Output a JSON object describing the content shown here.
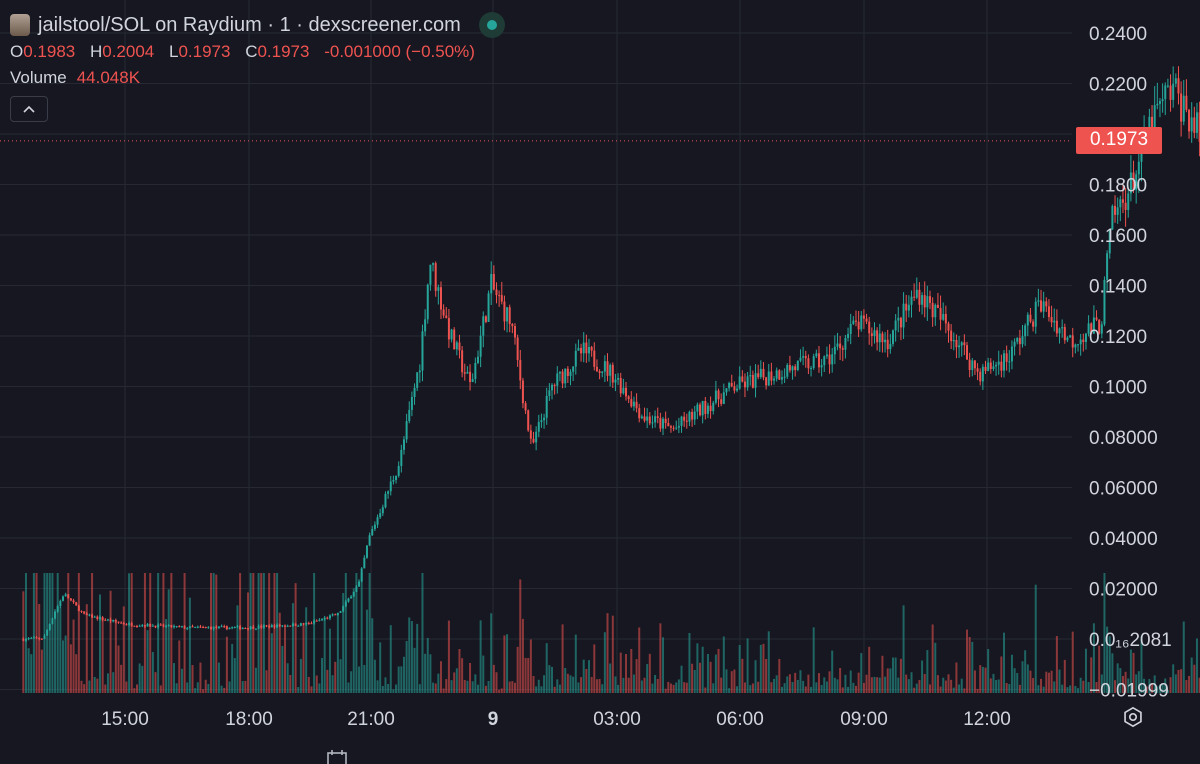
{
  "header": {
    "title": "jailstool/SOL on Raydium · 1 · dexscreener.com",
    "open_label": "O",
    "open": "0.1983",
    "high_label": "H",
    "high": "0.2004",
    "low_label": "L",
    "low": "0.1973",
    "close_label": "C",
    "close": "0.1973",
    "change": "-0.001000 (−0.50%)",
    "volume_label": "Volume",
    "volume": "44.048K",
    "collapse_icon": "chevron-up-icon",
    "status_icon": "status-dot-icon"
  },
  "current_price": "0.1973",
  "colors": {
    "up": "#26a69a",
    "down": "#ef5350",
    "background": "#161720",
    "grid": "#262833",
    "axis_text": "#d1d4dc"
  },
  "bottom_bar": {
    "calendar_icon": "calendar-icon",
    "settings_icon": "gear-icon"
  },
  "chart_data": {
    "type": "candlestick",
    "y_tick_labels": [
      "0.2400",
      "0.2200",
      "0.2000",
      "0.1800",
      "0.1600",
      "0.1400",
      "0.1200",
      "0.1000",
      "0.08000",
      "0.06000",
      "0.04000",
      "0.02000",
      "0.0₁₆2081",
      "−0.01999"
    ],
    "ylim": [
      -0.01999,
      0.24
    ],
    "x_tick_labels": [
      "15:00",
      "18:00",
      "21:00",
      "9",
      "03:00",
      "06:00",
      "09:00",
      "12:00"
    ],
    "grid": true,
    "close_series": [
      {
        "t": "13:20",
        "c": 0.0
      },
      {
        "t": "13:40",
        "c": 0.0003
      },
      {
        "t": "13:50",
        "c": 0.01
      },
      {
        "t": "14:00",
        "c": 0.018
      },
      {
        "t": "14:20",
        "c": 0.0095
      },
      {
        "t": "15:00",
        "c": 0.006
      },
      {
        "t": "16:00",
        "c": 0.0045
      },
      {
        "t": "17:00",
        "c": 0.0045
      },
      {
        "t": "18:00",
        "c": 0.006
      },
      {
        "t": "18:30",
        "c": 0.01
      },
      {
        "t": "18:50",
        "c": 0.022
      },
      {
        "t": "19:00",
        "c": 0.04
      },
      {
        "t": "19:30",
        "c": 0.07
      },
      {
        "t": "19:50",
        "c": 0.11
      },
      {
        "t": "20:00",
        "c": 0.15
      },
      {
        "t": "20:20",
        "c": 0.12
      },
      {
        "t": "20:40",
        "c": 0.1
      },
      {
        "t": "21:00",
        "c": 0.14
      },
      {
        "t": "21:20",
        "c": 0.125
      },
      {
        "t": "21:40",
        "c": 0.075
      },
      {
        "t": "22:00",
        "c": 0.1
      },
      {
        "t": "22:30",
        "c": 0.114
      },
      {
        "t": "23:00",
        "c": 0.105
      },
      {
        "t": "23:30",
        "c": 0.088
      },
      {
        "t": "00:00",
        "c": 0.083
      },
      {
        "t": "00:30",
        "c": 0.092
      },
      {
        "t": "01:00",
        "c": 0.1
      },
      {
        "t": "02:00",
        "c": 0.108
      },
      {
        "t": "02:30",
        "c": 0.11
      },
      {
        "t": "03:00",
        "c": 0.125
      },
      {
        "t": "03:30",
        "c": 0.118
      },
      {
        "t": "04:00",
        "c": 0.138
      },
      {
        "t": "04:30",
        "c": 0.123
      },
      {
        "t": "05:00",
        "c": 0.105
      },
      {
        "t": "05:30",
        "c": 0.112
      },
      {
        "t": "06:00",
        "c": 0.133
      },
      {
        "t": "06:30",
        "c": 0.118
      },
      {
        "t": "07:00",
        "c": 0.125
      },
      {
        "t": "07:10",
        "c": 0.165
      },
      {
        "t": "07:30",
        "c": 0.18
      },
      {
        "t": "07:50",
        "c": 0.205
      },
      {
        "t": "08:10",
        "c": 0.218
      },
      {
        "t": "08:30",
        "c": 0.205
      },
      {
        "t": "08:50",
        "c": 0.19
      },
      {
        "t": "09:10",
        "c": 0.163
      },
      {
        "t": "09:30",
        "c": 0.153
      },
      {
        "t": "09:40",
        "c": 0.143
      },
      {
        "t": "09:50",
        "c": 0.158
      },
      {
        "t": "10:00",
        "c": 0.192
      },
      {
        "t": "10:20",
        "c": 0.18
      },
      {
        "t": "10:40",
        "c": 0.174
      },
      {
        "t": "11:00",
        "c": 0.187
      },
      {
        "t": "11:20",
        "c": 0.2
      },
      {
        "t": "11:40",
        "c": 0.183
      },
      {
        "t": "12:00",
        "c": 0.213
      },
      {
        "t": "12:10",
        "c": 0.197
      }
    ]
  }
}
